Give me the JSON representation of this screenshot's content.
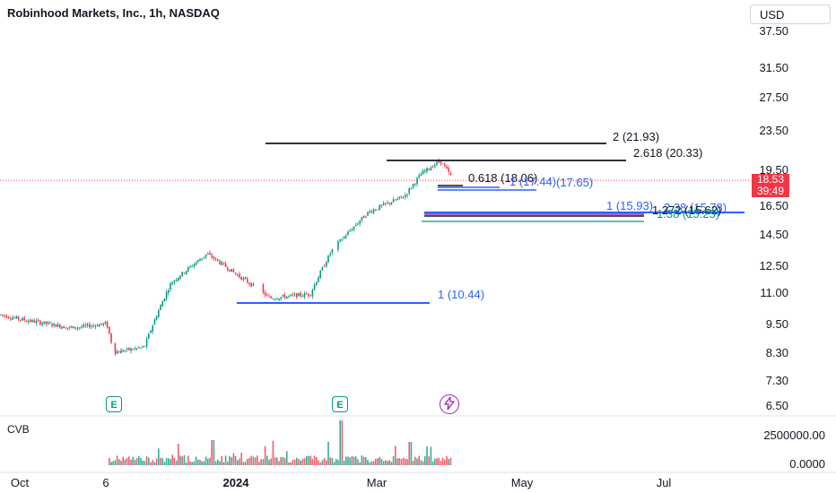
{
  "header": {
    "title": "Robinhood Markets, Inc., 1h, NASDAQ",
    "currency_button": "USD"
  },
  "price_axis": {
    "ticks": [
      "37.50",
      "31.50",
      "27.50",
      "23.50",
      "19.50",
      "16.50",
      "14.50",
      "12.50",
      "11.00",
      "9.50",
      "8.30",
      "7.30",
      "6.50"
    ]
  },
  "time_axis": {
    "ticks": [
      "Oct",
      "6",
      "2024",
      "Mar",
      "May",
      "Jul"
    ]
  },
  "last_price": {
    "price": "18.53",
    "countdown": "39:49"
  },
  "annotations": [
    {
      "label": "2 (21.93)",
      "color": "#131722"
    },
    {
      "label": "2.618 (20.33)",
      "color": "#131722"
    },
    {
      "label": "0.618 (18.06)",
      "color": "#131722"
    },
    {
      "label": "1 (17.44)",
      "color": "#2962ff"
    },
    {
      "label": "(17.65)",
      "color": "#2962ff"
    },
    {
      "label": "1 (15.93)",
      "color": "#2962ff"
    },
    {
      "label": "2.38 (15.78)",
      "color": "#2962ff"
    },
    {
      "label": "1.272 (15.62)",
      "color": "#131722"
    },
    {
      "label": "1.38 (15.25)",
      "color": "#089981"
    },
    {
      "label": "1 (10.44)",
      "color": "#2962ff"
    }
  ],
  "events": {
    "earnings_label": "E",
    "dividend_icon": "lightning-icon"
  },
  "volume_pane": {
    "label": "CVB",
    "ticks": [
      "2500000.00",
      "0.0000"
    ]
  },
  "colors": {
    "up": "#089981",
    "down": "#f23645",
    "fib_blue": "#2962ff",
    "fib_black": "#131722",
    "fib_green": "#089981"
  },
  "chart_data": {
    "type": "candlestick",
    "symbol": "Robinhood Markets, Inc.",
    "interval": "1h",
    "exchange": "NASDAQ",
    "approx_close_path": [
      {
        "x": "Sep",
        "y": 9.9
      },
      {
        "x": "Oct",
        "y": 9.7
      },
      {
        "x": "Oct",
        "y": 9.3
      },
      {
        "x": "6",
        "y": 9.5
      },
      {
        "x": "6",
        "y": 8.3
      },
      {
        "x": "Nov",
        "y": 8.5
      },
      {
        "x": "Dec",
        "y": 11.5
      },
      {
        "x": "Dec",
        "y": 13.2
      },
      {
        "x": "2024",
        "y": 12.0
      },
      {
        "x": "Jan",
        "y": 10.7
      },
      {
        "x": "Feb",
        "y": 10.9
      },
      {
        "x": "Feb",
        "y": 13.5
      },
      {
        "x": "Mar",
        "y": 16.0
      },
      {
        "x": "Mar",
        "y": 17.2
      },
      {
        "x": "Mar",
        "y": 19.2
      },
      {
        "x": "Mar",
        "y": 20.3
      },
      {
        "x": "Mar",
        "y": 18.53
      }
    ],
    "last_close": 18.53,
    "volume_axis_max": 2500000
  }
}
